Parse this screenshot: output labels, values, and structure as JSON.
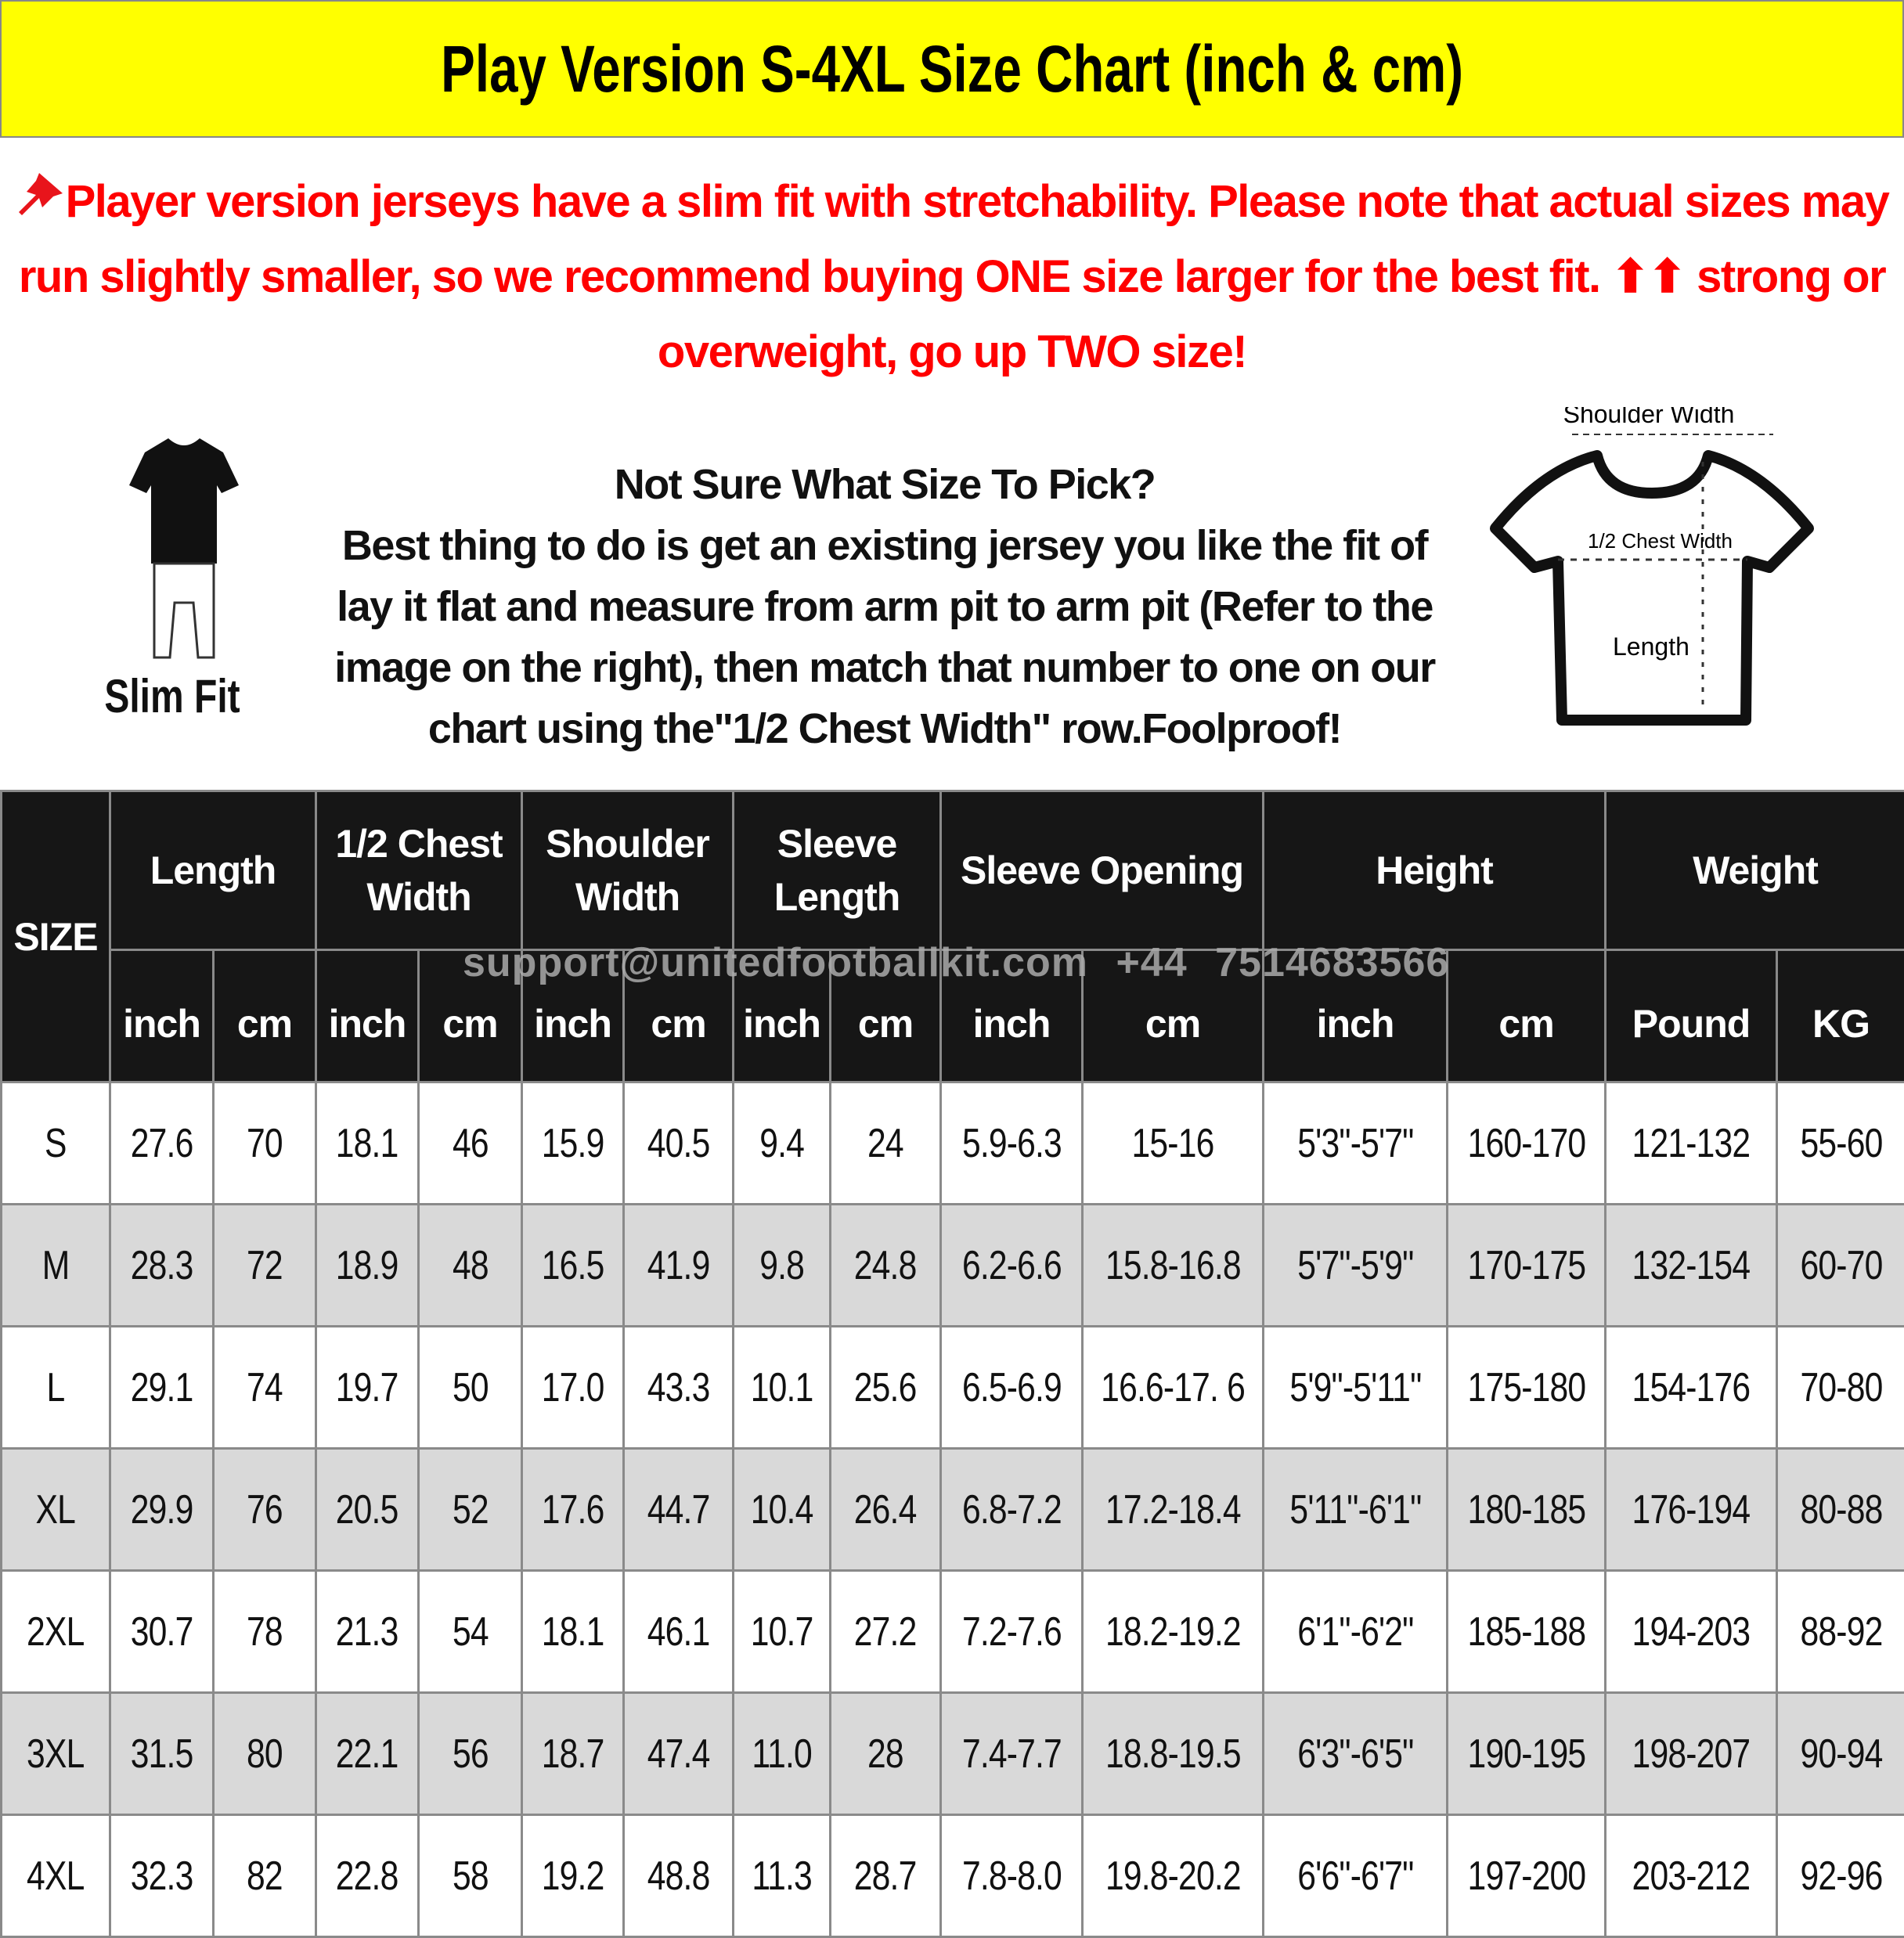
{
  "title": "Play Version S-4XL Size Chart (inch & cm)",
  "notice": {
    "icon": "pushpin-icon",
    "text1": "Player version jerseys have a slim fit with stretchability. Please note that actual sizes may run slightly smaller, so we recommend buying ONE size larger for the best fit.",
    "arrows": "⬆⬆",
    "text2": "strong or overweight, go up TWO size!",
    "color": "#ff0000"
  },
  "slim_fit": {
    "label": "Slim Fit"
  },
  "help": {
    "heading": "Not Sure What Size To Pick?",
    "body": "Best thing to do is get an existing jersey you like the fit of lay it flat and measure from arm pit to arm pit (Refer to the image on the right), then match that number to one on our chart using the\"1/2 Chest Width\" row.Foolproof!"
  },
  "diagram": {
    "shoulder_label": "Shoulder Width",
    "chest_label": "1/2 Chest Width",
    "length_label": "Length"
  },
  "watermark": "support@unitedfootballkit.com   +44 7514683566",
  "table": {
    "size_header": "SIZE",
    "groups": [
      "Length",
      "1/2 Chest Width",
      "Shoulder Width",
      "Sleeve Length",
      "Sleeve Opening",
      "Height",
      "Weight"
    ],
    "units": [
      "inch",
      "cm",
      "inch",
      "cm",
      "inch",
      "cm",
      "inch",
      "cm",
      "inch",
      "cm",
      "inch",
      "cm",
      "Pound",
      "KG"
    ],
    "rows": [
      [
        "S",
        "27.6",
        "70",
        "18.1",
        "46",
        "15.9",
        "40.5",
        "9.4",
        "24",
        "5.9-6.3",
        "15-16",
        "5'3\"-5'7\"",
        "160-170",
        "121-132",
        "55-60"
      ],
      [
        "M",
        "28.3",
        "72",
        "18.9",
        "48",
        "16.5",
        "41.9",
        "9.8",
        "24.8",
        "6.2-6.6",
        "15.8-16.8",
        "5'7\"-5'9\"",
        "170-175",
        "132-154",
        "60-70"
      ],
      [
        "L",
        "29.1",
        "74",
        "19.7",
        "50",
        "17.0",
        "43.3",
        "10.1",
        "25.6",
        "6.5-6.9",
        "16.6-17. 6",
        "5'9\"-5'11\"",
        "175-180",
        "154-176",
        "70-80"
      ],
      [
        "XL",
        "29.9",
        "76",
        "20.5",
        "52",
        "17.6",
        "44.7",
        "10.4",
        "26.4",
        "6.8-7.2",
        "17.2-18.4",
        "5'11\"-6'1\"",
        "180-185",
        "176-194",
        "80-88"
      ],
      [
        "2XL",
        "30.7",
        "78",
        "21.3",
        "54",
        "18.1",
        "46.1",
        "10.7",
        "27.2",
        "7.2-7.6",
        "18.2-19.2",
        "6'1\"-6'2\"",
        "185-188",
        "194-203",
        "88-92"
      ],
      [
        "3XL",
        "31.5",
        "80",
        "22.1",
        "56",
        "18.7",
        "47.4",
        "11.0",
        "28",
        "7.4-7.7",
        "18.8-19.5",
        "6'3\"-6'5\"",
        "190-195",
        "198-207",
        "90-94"
      ],
      [
        "4XL",
        "32.3",
        "82",
        "22.8",
        "58",
        "19.2",
        "48.8",
        "11.3",
        "28.7",
        "7.8-8.0",
        "19.8-20.2",
        "6'6\"-6'7\"",
        "197-200",
        "203-212",
        "92-96"
      ]
    ]
  }
}
